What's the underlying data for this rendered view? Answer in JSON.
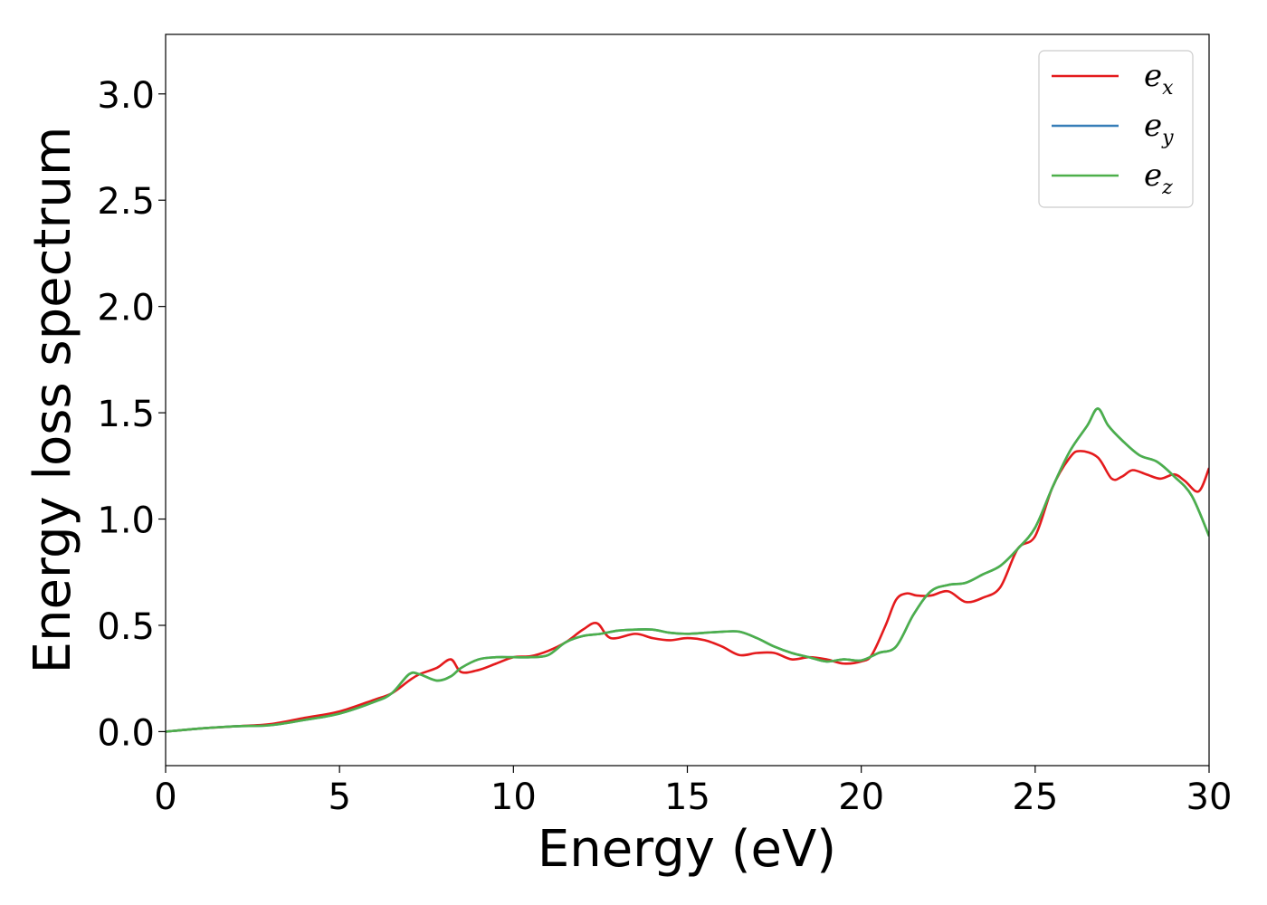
{
  "chart_data": {
    "type": "line",
    "title": "",
    "xlabel": "Energy (eV)",
    "ylabel": "Energy loss spectrum",
    "xlim": [
      0,
      30
    ],
    "ylim": [
      -0.16,
      3.28
    ],
    "xticks": [
      0,
      5,
      10,
      15,
      20,
      25,
      30
    ],
    "xtick_labels": [
      "0",
      "5",
      "10",
      "15",
      "20",
      "25",
      "30"
    ],
    "yticks": [
      0.0,
      0.5,
      1.0,
      1.5,
      2.0,
      2.5,
      3.0
    ],
    "ytick_labels": [
      "0.0",
      "0.5",
      "1.0",
      "1.5",
      "2.0",
      "2.5",
      "3.0"
    ],
    "grid": false,
    "legend": {
      "placement": "top-right"
    },
    "series": [
      {
        "name": "e_x",
        "legend_base": "e",
        "legend_sub": "x",
        "color": "#e41a1c",
        "x": [
          0,
          1,
          2,
          3,
          4,
          5,
          6,
          6.5,
          7,
          7.3,
          7.8,
          8.2,
          8.5,
          9,
          9.5,
          10,
          10.5,
          11,
          11.5,
          12,
          12.4,
          12.8,
          13.5,
          14,
          14.5,
          15,
          15.5,
          16,
          16.5,
          17,
          17.5,
          18,
          18.5,
          19,
          19.5,
          20,
          20.3,
          20.7,
          21,
          21.3,
          21.6,
          22,
          22.5,
          23,
          23.5,
          24,
          24.5,
          25,
          25.5,
          26,
          26.3,
          26.8,
          27.2,
          27.5,
          27.8,
          28.2,
          28.6,
          29,
          29.3,
          29.7,
          30
        ],
        "y": [
          0.0,
          0.015,
          0.025,
          0.035,
          0.065,
          0.095,
          0.15,
          0.18,
          0.24,
          0.27,
          0.3,
          0.34,
          0.28,
          0.29,
          0.32,
          0.35,
          0.355,
          0.38,
          0.42,
          0.48,
          0.51,
          0.44,
          0.46,
          0.44,
          0.43,
          0.44,
          0.43,
          0.4,
          0.36,
          0.37,
          0.37,
          0.34,
          0.35,
          0.34,
          0.32,
          0.33,
          0.36,
          0.5,
          0.62,
          0.65,
          0.64,
          0.64,
          0.66,
          0.61,
          0.63,
          0.68,
          0.86,
          0.92,
          1.15,
          1.29,
          1.32,
          1.29,
          1.19,
          1.2,
          1.23,
          1.21,
          1.19,
          1.21,
          1.18,
          1.13,
          1.24
        ]
      },
      {
        "name": "e_y",
        "legend_base": "e",
        "legend_sub": "y",
        "color": "#377eb8",
        "x": [
          0,
          1,
          2,
          3,
          4,
          5,
          6,
          6.5,
          7,
          7.3,
          7.8,
          8.2,
          8.5,
          9,
          9.5,
          10,
          10.5,
          11,
          11.5,
          12,
          12.5,
          13,
          13.5,
          14,
          14.5,
          15,
          15.5,
          16,
          16.5,
          17,
          17.5,
          18,
          18.5,
          19,
          19.5,
          20,
          20.5,
          21,
          21.5,
          22,
          22.5,
          23,
          23.5,
          24,
          24.5,
          25,
          25.5,
          26,
          26.5,
          26.8,
          27.1,
          27.5,
          28,
          28.5,
          29,
          29.5,
          30
        ],
        "y": [
          0.0,
          0.015,
          0.025,
          0.03,
          0.055,
          0.085,
          0.14,
          0.18,
          0.27,
          0.27,
          0.24,
          0.26,
          0.3,
          0.34,
          0.35,
          0.35,
          0.35,
          0.36,
          0.42,
          0.45,
          0.46,
          0.475,
          0.48,
          0.48,
          0.465,
          0.46,
          0.465,
          0.47,
          0.47,
          0.44,
          0.4,
          0.37,
          0.35,
          0.33,
          0.34,
          0.335,
          0.37,
          0.4,
          0.55,
          0.66,
          0.69,
          0.7,
          0.74,
          0.78,
          0.86,
          0.96,
          1.15,
          1.32,
          1.44,
          1.52,
          1.44,
          1.37,
          1.3,
          1.27,
          1.2,
          1.11,
          0.92
        ]
      },
      {
        "name": "e_z",
        "legend_base": "e",
        "legend_sub": "z",
        "color": "#4daf4a",
        "x": [
          0,
          1,
          2,
          3,
          4,
          5,
          6,
          6.5,
          7,
          7.3,
          7.8,
          8.2,
          8.5,
          9,
          9.5,
          10,
          10.5,
          11,
          11.5,
          12,
          12.5,
          13,
          13.5,
          14,
          14.5,
          15,
          15.5,
          16,
          16.5,
          17,
          17.5,
          18,
          18.5,
          19,
          19.5,
          20,
          20.5,
          21,
          21.5,
          22,
          22.5,
          23,
          23.5,
          24,
          24.5,
          25,
          25.5,
          26,
          26.5,
          26.8,
          27.1,
          27.5,
          28,
          28.5,
          29,
          29.5,
          30
        ],
        "y": [
          0.0,
          0.015,
          0.025,
          0.03,
          0.055,
          0.085,
          0.14,
          0.18,
          0.27,
          0.27,
          0.24,
          0.26,
          0.3,
          0.34,
          0.35,
          0.35,
          0.35,
          0.36,
          0.42,
          0.45,
          0.46,
          0.475,
          0.48,
          0.48,
          0.465,
          0.46,
          0.465,
          0.47,
          0.47,
          0.44,
          0.4,
          0.37,
          0.35,
          0.33,
          0.34,
          0.335,
          0.37,
          0.4,
          0.55,
          0.66,
          0.69,
          0.7,
          0.74,
          0.78,
          0.86,
          0.96,
          1.15,
          1.32,
          1.44,
          1.52,
          1.44,
          1.37,
          1.3,
          1.27,
          1.2,
          1.11,
          0.92
        ]
      }
    ]
  }
}
